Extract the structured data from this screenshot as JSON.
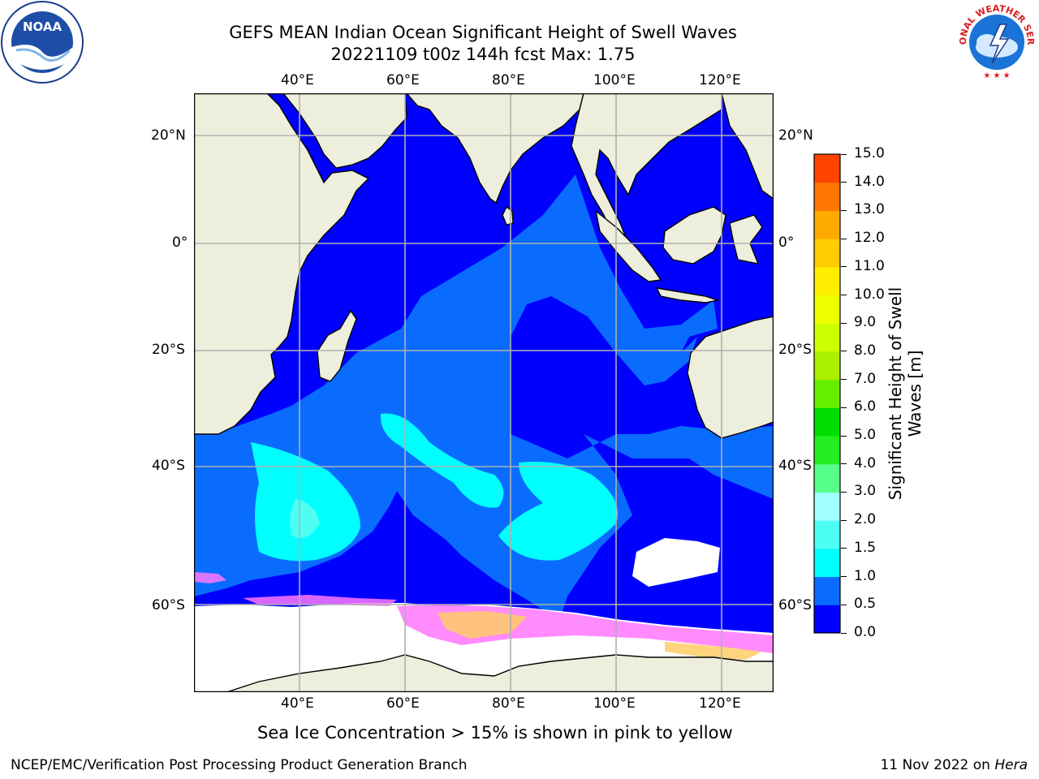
{
  "title": {
    "line1": "GEFS MEAN Indian Ocean Significant Height of Swell Waves",
    "line2": "20221109 t00z 144h fcst   Max: 1.75"
  },
  "map": {
    "lon_range": [
      20,
      130
    ],
    "lat_range": [
      -73,
      28
    ],
    "top_lon_labels": [
      "40°E",
      "60°E",
      "80°E",
      "100°E",
      "120°E"
    ],
    "bottom_lon_labels": [
      "40°E",
      "60°E",
      "80°E",
      "100°E",
      "120°E"
    ],
    "left_lat_labels": [
      "20°N",
      "0°",
      "20°S",
      "40°S",
      "60°S"
    ],
    "right_lat_labels": [
      "20°N",
      "0°",
      "20°S",
      "40°S",
      "60°S"
    ],
    "gridlines": true,
    "colors": {
      "land": "#eeeedc",
      "band_0_05": "#0000ff",
      "band_05_10": "#0a6cff",
      "band_10_15": "#00ffff",
      "band_15_20": "#4dfff2",
      "sea_ice_pink": "#ff77ff",
      "sea_ice_yellow": "#ffcc66"
    }
  },
  "colorbar": {
    "label_line1": "Significant Height of Swell",
    "label_line2": "Waves [m]",
    "ticks": [
      "0.0",
      "0.5",
      "1.0",
      "1.5",
      "2.0",
      "3.0",
      "4.0",
      "5.0",
      "6.0",
      "7.0",
      "8.0",
      "9.0",
      "10.0",
      "11.0",
      "12.0",
      "13.0",
      "14.0",
      "15.0"
    ],
    "colors": [
      "#0000ff",
      "#0a6cff",
      "#00ffff",
      "#4dfff2",
      "#a0ffff",
      "#55ff88",
      "#22ee22",
      "#00dd00",
      "#66ee00",
      "#aaee00",
      "#ccff00",
      "#eeff00",
      "#ffee00",
      "#ffcc00",
      "#ffaa00",
      "#ff7700",
      "#ff4400",
      "#ff0000"
    ]
  },
  "sea_ice_note": "Sea Ice Concentration > 15% is shown in pink to yellow",
  "footer": {
    "left": "NCEP/EMC/Verification Post Processing Product Generation Branch",
    "right_prefix": "11 Nov 2022 on ",
    "right_host": "Hera"
  },
  "logos": {
    "noaa_text": "NOAA",
    "nws_text": "NATIONAL WEATHER SERVICE"
  }
}
